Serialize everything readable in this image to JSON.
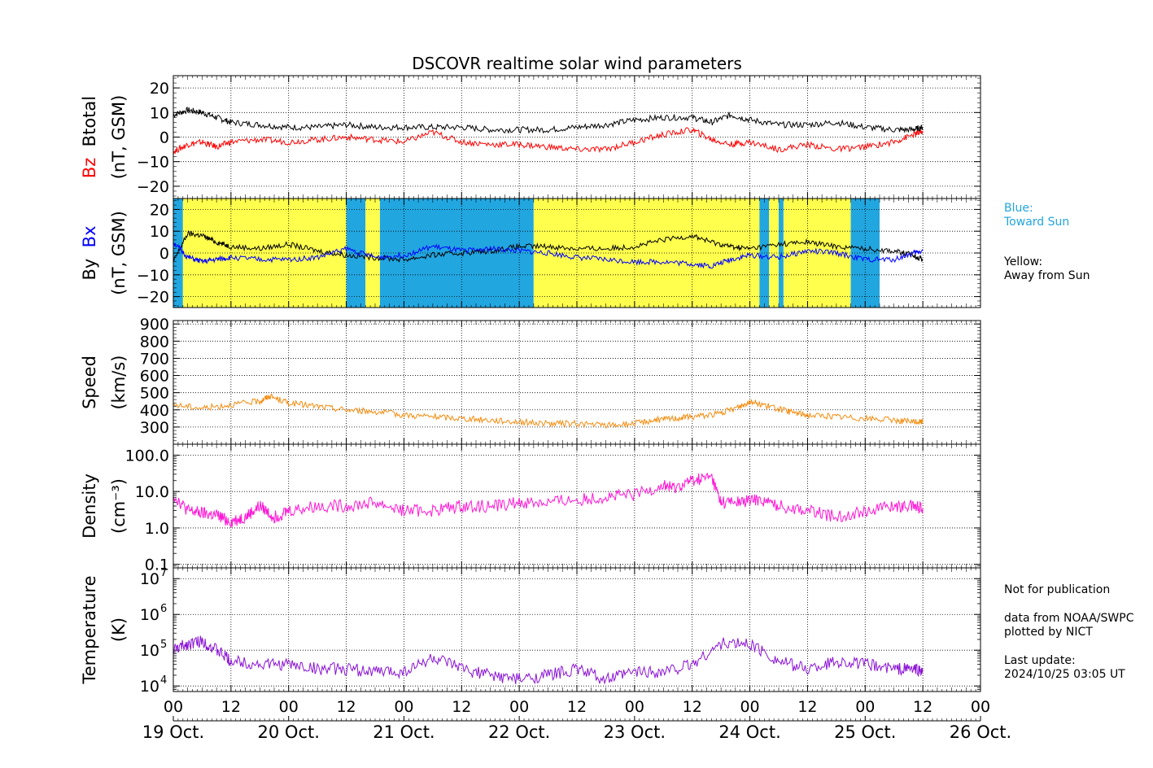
{
  "title": "DSCOVR realtime solar wind parameters",
  "colors": {
    "black": "#000000",
    "bz": "#ff0000",
    "bx": "#0000ff",
    "speed": "#f58c0f",
    "density": "#ff17d6",
    "temperature": "#8b13d6",
    "toward": "#22a6e0",
    "away": "#ffff4d"
  },
  "notes": {
    "blue_label": "Blue:",
    "blue_desc": "Toward Sun",
    "yellow_label": "Yellow:",
    "yellow_desc": "Away from Sun",
    "pub": "Not for publication",
    "source1": "data from NOAA/SWPC",
    "source2": "plotted by NICT",
    "update_label": "Last update:",
    "update_value": "2024/10/25 03:05 UT"
  },
  "chart_data": [
    {
      "type": "line",
      "panel": "magnetic-field-total",
      "ylabel_parts": [
        "Bz",
        "Btotal"
      ],
      "ylabel_units": "(nT, GSM)",
      "ylim": [
        -25,
        25
      ],
      "yticks": [
        "20",
        "10",
        "0",
        "−10",
        "−20"
      ],
      "ytick_values": [
        20,
        10,
        0,
        -10,
        -20
      ],
      "series": [
        {
          "name": "Btotal",
          "color": "#000000",
          "x": [
            0,
            3,
            6,
            9,
            12,
            18,
            24,
            30,
            36,
            42,
            48,
            54,
            60,
            66,
            72,
            78,
            84,
            90,
            96,
            102,
            108,
            112,
            116,
            120,
            126,
            132,
            138,
            144,
            150,
            154,
            156
          ],
          "values": [
            9,
            11,
            10,
            8,
            6,
            5,
            4,
            4,
            5,
            4,
            4,
            4,
            4,
            3,
            3,
            3,
            4,
            5,
            7,
            8,
            8,
            6,
            9,
            7,
            5,
            5,
            6,
            4,
            3,
            3,
            4
          ]
        },
        {
          "name": "Bz",
          "color": "#ff0000",
          "x": [
            0,
            3,
            6,
            9,
            12,
            18,
            24,
            30,
            36,
            42,
            48,
            54,
            60,
            66,
            72,
            78,
            84,
            90,
            96,
            102,
            108,
            112,
            116,
            120,
            126,
            132,
            138,
            144,
            150,
            154,
            156
          ],
          "values": [
            -6,
            -3,
            -2,
            -4,
            -2,
            -1,
            -2,
            -1,
            0,
            -1,
            -2,
            2,
            -2,
            -3,
            -3,
            -4,
            -5,
            -5,
            -2,
            1,
            3,
            -1,
            -3,
            -2,
            -5,
            -3,
            -5,
            -4,
            -2,
            1,
            2
          ]
        }
      ]
    },
    {
      "type": "line",
      "panel": "magnetic-field-components",
      "ylabel_parts": [
        "By",
        "Bx"
      ],
      "ylabel_units": "(nT, GSM)",
      "ylim": [
        -25,
        25
      ],
      "yticks": [
        "20",
        "10",
        "0",
        "−10",
        "−20"
      ],
      "ytick_values": [
        20,
        10,
        0,
        -10,
        -20
      ],
      "series": [
        {
          "name": "By",
          "color": "#000000",
          "x": [
            0,
            3,
            6,
            9,
            12,
            18,
            24,
            30,
            36,
            42,
            48,
            54,
            60,
            66,
            72,
            78,
            84,
            90,
            96,
            102,
            108,
            112,
            116,
            120,
            126,
            132,
            138,
            144,
            150,
            154,
            156
          ],
          "values": [
            -4,
            9,
            8,
            5,
            3,
            2,
            4,
            1,
            -1,
            -2,
            -3,
            -1,
            0,
            1,
            3,
            3,
            2,
            2,
            3,
            6,
            8,
            5,
            3,
            2,
            4,
            5,
            3,
            2,
            1,
            -1,
            -3
          ]
        },
        {
          "name": "Bx",
          "color": "#0000ff",
          "x": [
            0,
            3,
            6,
            9,
            12,
            18,
            24,
            30,
            36,
            42,
            48,
            54,
            60,
            66,
            72,
            78,
            84,
            90,
            96,
            102,
            108,
            112,
            116,
            120,
            126,
            132,
            138,
            144,
            150,
            154,
            156
          ],
          "values": [
            5,
            -2,
            -4,
            -3,
            -2,
            -3,
            -3,
            -2,
            2,
            -2,
            -1,
            3,
            1,
            2,
            1,
            0,
            -2,
            -3,
            -4,
            -4,
            -5,
            -6,
            -3,
            -1,
            -2,
            1,
            0,
            -3,
            -3,
            0,
            1
          ]
        }
      ],
      "sectors": [
        {
          "from": 0,
          "to": 2,
          "color": "toward"
        },
        {
          "from": 2,
          "to": 36,
          "color": "away"
        },
        {
          "from": 36,
          "to": 40,
          "color": "toward"
        },
        {
          "from": 40,
          "to": 43,
          "color": "away"
        },
        {
          "from": 43,
          "to": 75,
          "color": "toward"
        },
        {
          "from": 75,
          "to": 122,
          "color": "away"
        },
        {
          "from": 122,
          "to": 124,
          "color": "toward"
        },
        {
          "from": 124,
          "to": 126,
          "color": "away"
        },
        {
          "from": 126,
          "to": 127,
          "color": "toward"
        },
        {
          "from": 127,
          "to": 141,
          "color": "away"
        },
        {
          "from": 141,
          "to": 147,
          "color": "toward"
        }
      ]
    },
    {
      "type": "line",
      "panel": "speed",
      "ylabel_parts": [
        "Speed"
      ],
      "ylabel_units": "(km/s)",
      "ylim": [
        200,
        920
      ],
      "yticks": [
        "900",
        "800",
        "700",
        "600",
        "500",
        "400",
        "300"
      ],
      "ytick_values": [
        900,
        800,
        700,
        600,
        500,
        400,
        300
      ],
      "series": [
        {
          "name": "Speed",
          "color": "#f58c0f",
          "x": [
            0,
            6,
            12,
            18,
            20,
            24,
            30,
            36,
            42,
            48,
            54,
            60,
            66,
            72,
            78,
            84,
            90,
            96,
            100,
            104,
            108,
            114,
            118,
            120,
            124,
            128,
            132,
            138,
            144,
            150,
            154,
            156
          ],
          "values": [
            430,
            410,
            430,
            450,
            480,
            440,
            420,
            400,
            390,
            370,
            360,
            350,
            340,
            330,
            320,
            320,
            310,
            320,
            340,
            350,
            360,
            380,
            420,
            450,
            420,
            390,
            370,
            360,
            350,
            340,
            330,
            330
          ]
        }
      ]
    },
    {
      "type": "line",
      "panel": "density",
      "ylabel_parts": [
        "Density"
      ],
      "ylabel_units": "(cm⁻³)",
      "yscale": "log",
      "ylim": [
        0.08,
        200
      ],
      "yticks": [
        "100.0",
        "10.0",
        "1.0",
        "0.1"
      ],
      "ytick_values": [
        100,
        10,
        1,
        0.1
      ],
      "series": [
        {
          "name": "Density",
          "color": "#ff17d6",
          "x": [
            0,
            3,
            6,
            9,
            12,
            15,
            18,
            21,
            24,
            30,
            36,
            42,
            48,
            54,
            60,
            66,
            72,
            78,
            84,
            90,
            96,
            102,
            104,
            108,
            112,
            114,
            118,
            122,
            126,
            132,
            138,
            144,
            150,
            154,
            156
          ],
          "values": [
            8,
            3,
            2.5,
            2.2,
            1.5,
            2,
            4,
            2,
            3,
            4,
            4,
            5,
            3,
            3,
            4,
            4,
            5,
            5,
            6,
            7,
            8,
            15,
            12,
            20,
            25,
            5,
            5,
            6,
            4,
            3,
            2,
            3,
            4,
            4,
            3.5
          ]
        }
      ]
    },
    {
      "type": "line",
      "panel": "temperature",
      "ylabel_parts": [
        "Temperature"
      ],
      "ylabel_units": "(K)",
      "yscale": "log",
      "ylim": [
        7000,
        20000000
      ],
      "yticks": [
        "10",
        "10",
        "10",
        "10"
      ],
      "ytick_exponents": [
        "7",
        "6",
        "5",
        "4"
      ],
      "ytick_values": [
        10000000,
        1000000,
        100000,
        10000
      ],
      "series": [
        {
          "name": "Temperature",
          "color": "#8b13d6",
          "x": [
            0,
            3,
            6,
            9,
            12,
            18,
            24,
            30,
            36,
            42,
            48,
            54,
            60,
            66,
            72,
            78,
            84,
            90,
            96,
            102,
            108,
            114,
            120,
            126,
            132,
            138,
            144,
            150,
            154,
            156
          ],
          "values": [
            100000,
            150000,
            180000,
            100000,
            50000,
            40000,
            40000,
            30000,
            30000,
            25000,
            25000,
            60000,
            30000,
            20000,
            15000,
            20000,
            30000,
            15000,
            25000,
            25000,
            40000,
            150000,
            150000,
            50000,
            30000,
            50000,
            40000,
            30000,
            30000,
            25000
          ]
        }
      ]
    }
  ],
  "x_axis": {
    "range_hours": [
      0,
      168
    ],
    "hour_ticks": [
      {
        "hours": 0,
        "label": "00"
      },
      {
        "hours": 12,
        "label": "12"
      },
      {
        "hours": 24,
        "label": "00"
      },
      {
        "hours": 36,
        "label": "12"
      },
      {
        "hours": 48,
        "label": "00"
      },
      {
        "hours": 60,
        "label": "12"
      },
      {
        "hours": 72,
        "label": "00"
      },
      {
        "hours": 84,
        "label": "12"
      },
      {
        "hours": 96,
        "label": "00"
      },
      {
        "hours": 108,
        "label": "12"
      },
      {
        "hours": 120,
        "label": "00"
      },
      {
        "hours": 132,
        "label": "12"
      },
      {
        "hours": 144,
        "label": "00"
      },
      {
        "hours": 156,
        "label": "12"
      },
      {
        "hours": 168,
        "label": "00"
      }
    ],
    "day_labels": [
      {
        "hours": 0,
        "label": "19 Oct."
      },
      {
        "hours": 24,
        "label": "20 Oct."
      },
      {
        "hours": 48,
        "label": "21 Oct."
      },
      {
        "hours": 72,
        "label": "22 Oct."
      },
      {
        "hours": 96,
        "label": "23 Oct."
      },
      {
        "hours": 120,
        "label": "24 Oct."
      },
      {
        "hours": 144,
        "label": "25 Oct."
      },
      {
        "hours": 168,
        "label": "26 Oct."
      }
    ]
  }
}
